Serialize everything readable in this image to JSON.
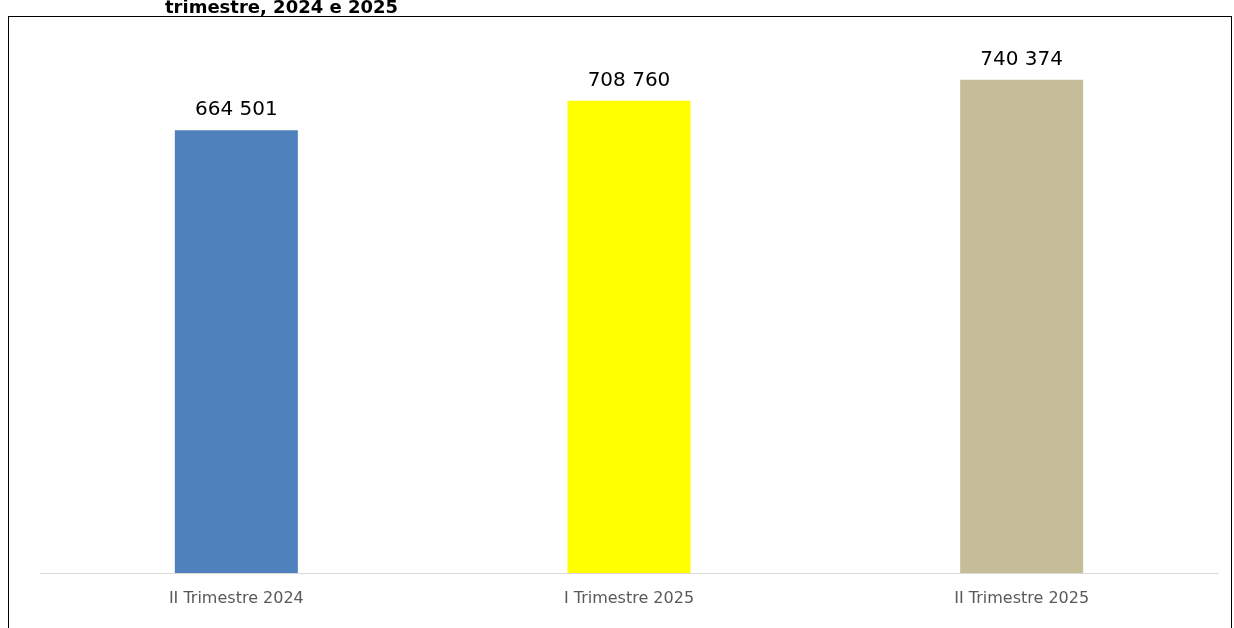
{
  "chart_data": {
    "type": "bar",
    "title": "trimestre, 2024 e 2025",
    "categories": [
      "II Trimestre 2024",
      "I Trimestre 2025",
      "II Trimestre 2025"
    ],
    "values": [
      664501,
      708760,
      740374
    ],
    "colors": [
      "#4f81bd",
      "#ffff00",
      "#c4bd97"
    ],
    "data_labels": true
  }
}
